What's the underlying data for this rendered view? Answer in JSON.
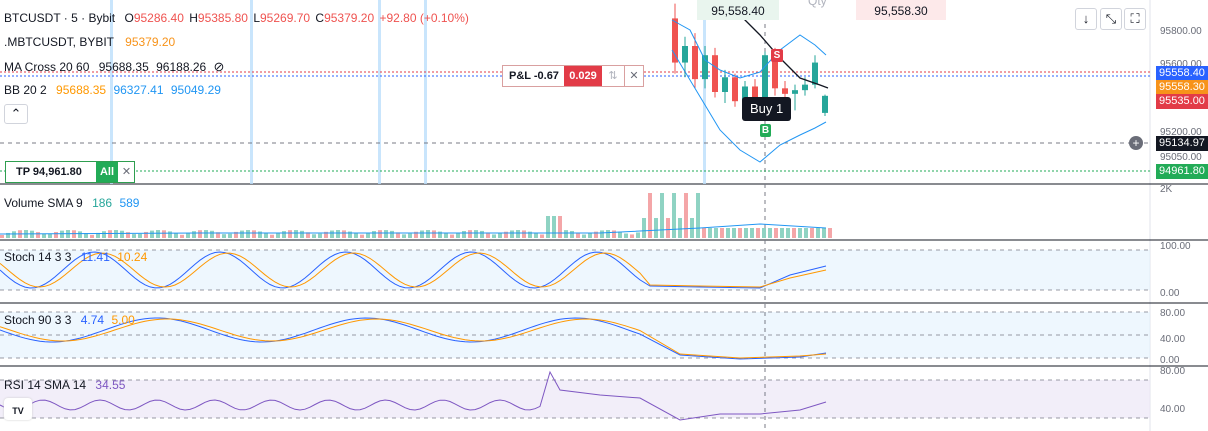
{
  "legend": {
    "symbol": "BTCUSDT · 5 · Bybit",
    "o_label": "O",
    "o": "95286.40",
    "h_label": "H",
    "h": "95385.80",
    "l_label": "L",
    "l": "95269.70",
    "c_label": "C",
    "c": "95379.20",
    "change": "+92.80 (+0.10%)",
    "mark_symbol": ".MBTCUSDT, BYBIT",
    "mark_value": "95379.20",
    "ma_label": "MA Cross 20 60",
    "ma_v1": "95688.35",
    "ma_v2": "96188.26",
    "bb_label": "BB 20 2",
    "bb_v1": "95688.35",
    "bb_v2": "96327.41",
    "bb_v3": "95049.29",
    "collapse_icon": "chevron-up-icon"
  },
  "order_panel": {
    "left_price": "95,558.40",
    "qty_label": "Qty",
    "right_price": "95,558.30"
  },
  "toolbar": {
    "down_icon": "arrow-down-icon",
    "expand_icon": "expand-icon",
    "fullscreen_icon": "fullscreen-icon"
  },
  "position": {
    "pnl_label": "P&L -0.67",
    "qty": "0.029",
    "reverse_icon": "arrows-updown-icon",
    "close_icon": "close-icon"
  },
  "tp": {
    "label": "TP 94,961.80",
    "all_label": "All",
    "close_icon": "close-icon"
  },
  "markers": {
    "sell": "S",
    "buy": "B",
    "buy_tooltip": "Buy 1"
  },
  "price_axis": {
    "ticks": [
      "95800.00",
      "95600.00",
      "95200.00",
      "95050.00"
    ],
    "tags": [
      {
        "value": "95558.40",
        "color": "#2962ff"
      },
      {
        "value": "95558.30",
        "color": "#f7931a"
      },
      {
        "value": "95535.00",
        "color": "#e23b47"
      },
      {
        "value": "95134.97",
        "color": "#131722"
      },
      {
        "value": "94961.80",
        "color": "#22ab57"
      }
    ],
    "plus_icon": "plus-circle-icon"
  },
  "volume_pane": {
    "label": "Volume SMA 9",
    "v1": "186",
    "v2": "589",
    "axis": "2K"
  },
  "stoch1_pane": {
    "label": "Stoch 14 3 3",
    "k": "11.41",
    "d": "10.24",
    "ticks": [
      "100.00",
      "0.00"
    ]
  },
  "stoch2_pane": {
    "label": "Stoch 90 3 3",
    "k": "4.74",
    "d": "5.00",
    "ticks": [
      "80.00",
      "40.00",
      "0.00"
    ]
  },
  "rsi_pane": {
    "label": "RSI 14 SMA 14",
    "v": "34.55",
    "ticks": [
      "80.00",
      "40.00"
    ]
  },
  "logo": "TV",
  "colors": {
    "up": "#26a69a",
    "down": "#ef5350",
    "bb": "#2196f3",
    "ma": "#131722",
    "stoch_k": "#2962ff",
    "stoch_d": "#ff9800",
    "rsi": "#7e57c2"
  },
  "chart_data": {
    "type": "candlestick",
    "candles_tail": [
      {
        "o": 95800,
        "h": 95880,
        "l": 95500,
        "c": 95560
      },
      {
        "o": 95560,
        "h": 95700,
        "l": 95480,
        "c": 95650
      },
      {
        "o": 95650,
        "h": 95720,
        "l": 95420,
        "c": 95470
      },
      {
        "o": 95470,
        "h": 95650,
        "l": 95420,
        "c": 95600
      },
      {
        "o": 95600,
        "h": 95640,
        "l": 95370,
        "c": 95400
      },
      {
        "o": 95400,
        "h": 95520,
        "l": 95340,
        "c": 95480
      },
      {
        "o": 95480,
        "h": 95500,
        "l": 95320,
        "c": 95350
      },
      {
        "o": 95350,
        "h": 95460,
        "l": 95310,
        "c": 95430
      },
      {
        "o": 95430,
        "h": 95470,
        "l": 95330,
        "c": 95360
      },
      {
        "o": 95360,
        "h": 95620,
        "l": 95340,
        "c": 95600
      },
      {
        "o": 95600,
        "h": 95640,
        "l": 95380,
        "c": 95420
      },
      {
        "o": 95420,
        "h": 95460,
        "l": 95350,
        "c": 95390
      },
      {
        "o": 95390,
        "h": 95440,
        "l": 95300,
        "c": 95410
      },
      {
        "o": 95410,
        "h": 95480,
        "l": 95380,
        "c": 95440
      },
      {
        "o": 95440,
        "h": 95600,
        "l": 95420,
        "c": 95560
      },
      {
        "o": 95286.4,
        "h": 95385.8,
        "l": 95269.7,
        "c": 95379.2
      }
    ],
    "price_range": [
      94900,
      95900
    ]
  }
}
